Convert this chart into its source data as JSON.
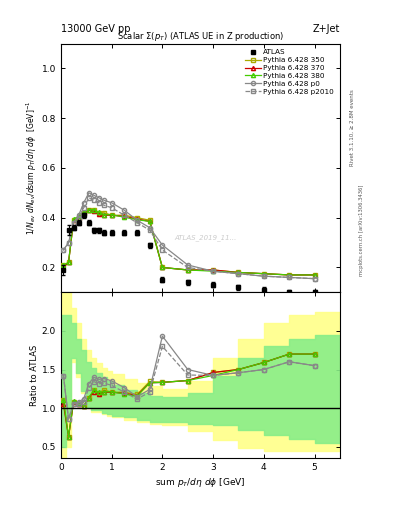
{
  "title_left": "13000 GeV pp",
  "title_right": "Z+Jet",
  "plot_title": "Scalar $\\Sigma(p_T)$ (ATLAS UE in Z production)",
  "ylabel_main": "$1/N_{ev}$ $dN_{ev}/d$sum $p_T/d\\eta$ $d\\phi$  [GeV]$^{-1}$",
  "ylabel_ratio": "Ratio to ATLAS",
  "xlabel": "sum $p_T/d\\eta$ $d\\phi$ [GeV]",
  "right_label1": "Rivet 3.1.10, ≥ 2.8M events",
  "right_label2": "mcplots.cern.ch [arXiv:1306.3436]",
  "watermark": "ATLAS_2019_11...",
  "atlas_x": [
    0.05,
    0.15,
    0.25,
    0.35,
    0.45,
    0.55,
    0.65,
    0.75,
    0.85,
    1.0,
    1.25,
    1.5,
    1.75,
    2.0,
    2.5,
    3.0,
    3.5,
    4.0,
    4.5,
    5.0
  ],
  "atlas_y": [
    0.19,
    0.35,
    0.36,
    0.38,
    0.41,
    0.38,
    0.35,
    0.35,
    0.34,
    0.34,
    0.34,
    0.34,
    0.29,
    0.15,
    0.14,
    0.13,
    0.12,
    0.11,
    0.1,
    0.1
  ],
  "atlas_ey": [
    0.02,
    0.02,
    0.01,
    0.01,
    0.01,
    0.01,
    0.01,
    0.01,
    0.01,
    0.01,
    0.01,
    0.01,
    0.01,
    0.01,
    0.01,
    0.01,
    0.01,
    0.01,
    0.01,
    0.01
  ],
  "py_x": [
    0.05,
    0.15,
    0.25,
    0.35,
    0.45,
    0.55,
    0.65,
    0.75,
    0.85,
    1.0,
    1.25,
    1.5,
    1.75,
    2.0,
    2.5,
    3.0,
    3.5,
    4.0,
    4.5,
    5.0
  ],
  "py350_y": [
    0.21,
    0.22,
    0.39,
    0.4,
    0.42,
    0.43,
    0.43,
    0.42,
    0.42,
    0.41,
    0.41,
    0.4,
    0.39,
    0.2,
    0.19,
    0.19,
    0.18,
    0.175,
    0.17,
    0.17
  ],
  "py370_y": [
    0.2,
    0.22,
    0.39,
    0.4,
    0.42,
    0.43,
    0.425,
    0.415,
    0.41,
    0.41,
    0.405,
    0.395,
    0.385,
    0.2,
    0.19,
    0.19,
    0.18,
    0.175,
    0.17,
    0.17
  ],
  "py380_y": [
    0.21,
    0.22,
    0.395,
    0.405,
    0.422,
    0.432,
    0.432,
    0.422,
    0.412,
    0.412,
    0.402,
    0.392,
    0.385,
    0.2,
    0.19,
    0.185,
    0.18,
    0.175,
    0.17,
    0.17
  ],
  "pyp0_y": [
    0.27,
    0.3,
    0.38,
    0.41,
    0.46,
    0.5,
    0.49,
    0.48,
    0.47,
    0.46,
    0.43,
    0.39,
    0.36,
    0.29,
    0.21,
    0.185,
    0.175,
    0.165,
    0.16,
    0.155
  ],
  "pyp2010_y": [
    0.27,
    0.3,
    0.38,
    0.4,
    0.44,
    0.48,
    0.47,
    0.46,
    0.45,
    0.44,
    0.41,
    0.38,
    0.35,
    0.27,
    0.2,
    0.185,
    0.175,
    0.165,
    0.16,
    0.155
  ],
  "color_350": "#aaaa00",
  "color_370": "#cc0000",
  "color_380": "#44cc00",
  "color_p0": "#888888",
  "color_p2010": "#888888",
  "ratio_band_yellow_edges": [
    0.0,
    0.1,
    0.2,
    0.3,
    0.4,
    0.5,
    0.6,
    0.7,
    0.8,
    0.9,
    1.0,
    1.25,
    1.5,
    1.75,
    2.0,
    2.5,
    3.0,
    3.5,
    4.0,
    4.5,
    5.0,
    5.5
  ],
  "ratio_band_yellow_lo": [
    0.35,
    0.5,
    1.6,
    1.4,
    1.2,
    1.0,
    0.95,
    0.95,
    0.92,
    0.9,
    0.88,
    0.85,
    0.82,
    0.8,
    0.78,
    0.7,
    0.58,
    0.48,
    0.45,
    0.45,
    0.45,
    0.45
  ],
  "ratio_band_yellow_hi": [
    2.5,
    2.5,
    2.3,
    2.1,
    1.9,
    1.75,
    1.65,
    1.58,
    1.52,
    1.48,
    1.44,
    1.38,
    1.32,
    1.28,
    1.25,
    1.35,
    1.65,
    1.9,
    2.1,
    2.2,
    2.25,
    2.25
  ],
  "ratio_band_green_edges": [
    0.0,
    0.1,
    0.2,
    0.3,
    0.4,
    0.5,
    0.6,
    0.7,
    0.8,
    0.9,
    1.0,
    1.25,
    1.5,
    1.75,
    2.0,
    2.5,
    3.0,
    3.5,
    4.0,
    4.5,
    5.0,
    5.5
  ],
  "ratio_band_green_lo": [
    0.5,
    0.9,
    1.65,
    1.45,
    1.22,
    1.02,
    0.97,
    0.97,
    0.94,
    0.92,
    0.9,
    0.88,
    0.85,
    0.82,
    0.82,
    0.8,
    0.78,
    0.72,
    0.65,
    0.6,
    0.55,
    0.55
  ],
  "ratio_band_green_hi": [
    2.2,
    2.2,
    2.1,
    1.9,
    1.75,
    1.6,
    1.52,
    1.45,
    1.4,
    1.35,
    1.3,
    1.24,
    1.2,
    1.16,
    1.14,
    1.2,
    1.42,
    1.65,
    1.8,
    1.9,
    1.95,
    1.95
  ],
  "xlim": [
    0.0,
    5.5
  ],
  "ylim_main": [
    0.1,
    1.1
  ],
  "ylim_ratio": [
    0.35,
    2.5
  ],
  "yticks_main": [
    0.2,
    0.4,
    0.6,
    0.8,
    1.0
  ],
  "yticks_ratio": [
    0.5,
    1.0,
    1.5,
    2.0
  ]
}
